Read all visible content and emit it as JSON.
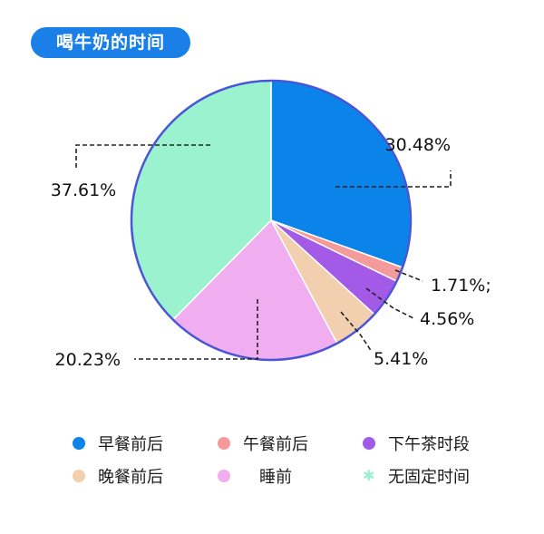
{
  "title": "喝牛奶的时间",
  "chart_data": {
    "type": "pie",
    "title": "喝牛奶的时间",
    "series": [
      {
        "name": "早餐前后",
        "value": 30.48,
        "label": "30.48%",
        "color": "#0a84e8"
      },
      {
        "name": "午餐前后",
        "value": 1.71,
        "label": "1.71%;",
        "color": "#f49a9a"
      },
      {
        "name": "下午茶时段",
        "value": 4.56,
        "label": "4.56%",
        "color": "#a35ae6"
      },
      {
        "name": "晚餐前后",
        "value": 5.41,
        "label": "5.41%",
        "color": "#f2cfae"
      },
      {
        "name": "睡前",
        "value": 20.23,
        "label": "20.23%",
        "color": "#f0aef0"
      },
      {
        "name": "无固定时间",
        "value": 37.61,
        "label": "37.61%",
        "color": "#9af2cf"
      }
    ],
    "legend_position": "bottom"
  }
}
